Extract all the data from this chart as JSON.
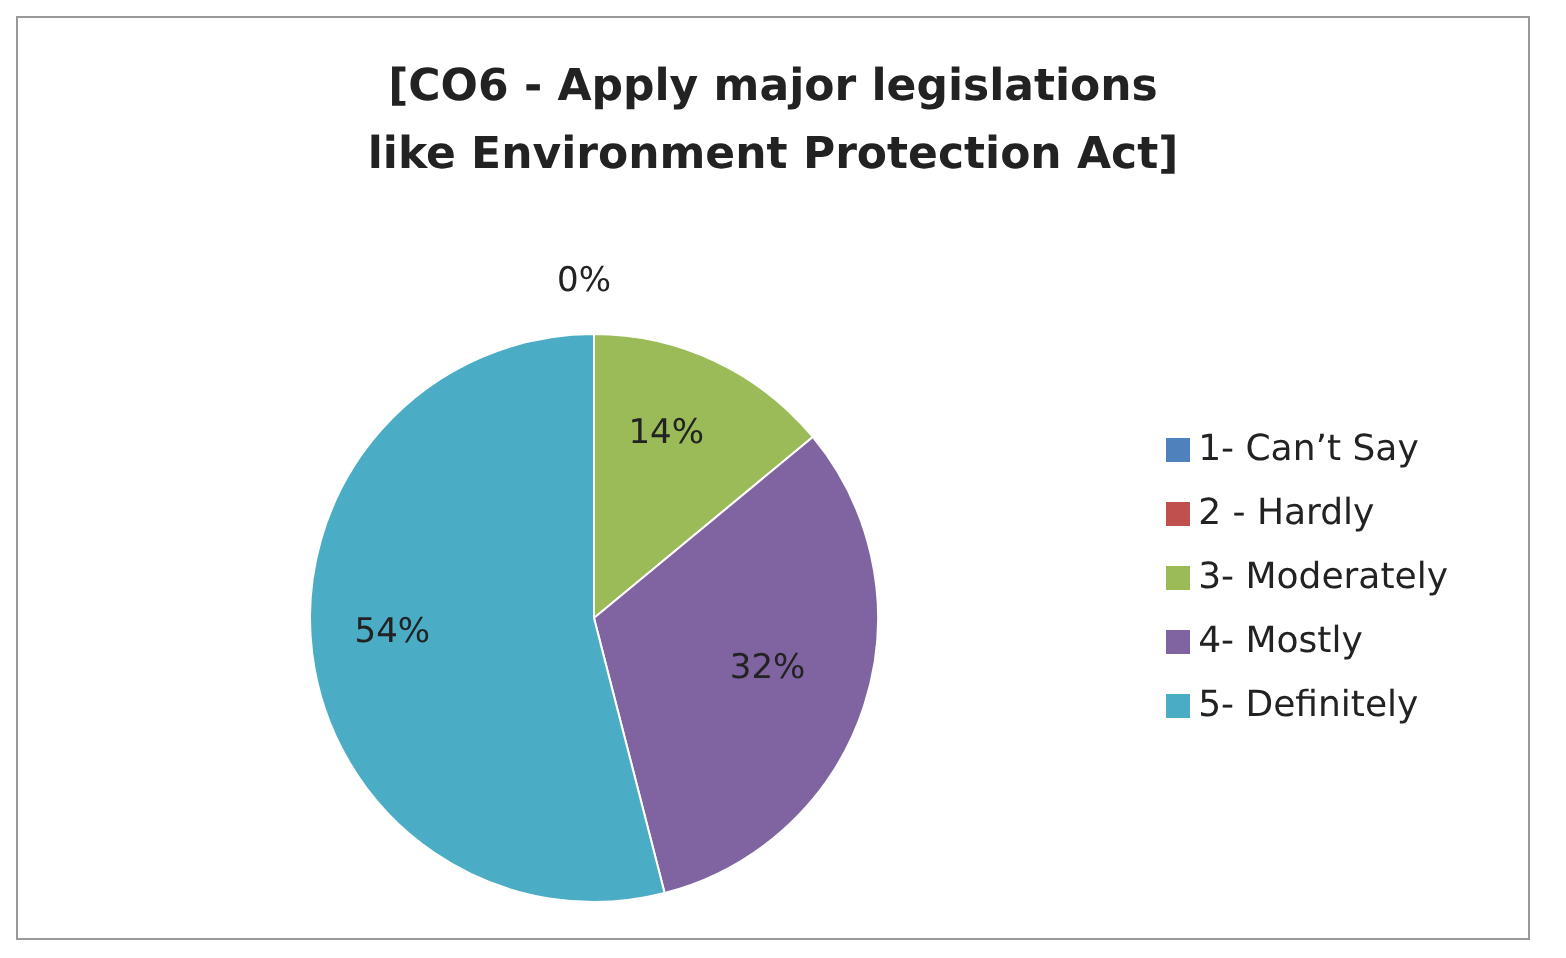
{
  "chart_data": {
    "type": "pie",
    "title": "[CO6 - Apply major legislations like Environment Protection Act]",
    "categories": [
      "1- Can’t Say",
      "2 - Hardly",
      "3- Moderately",
      "4- Mostly",
      "5- Definitely"
    ],
    "values": [
      0,
      0,
      14,
      32,
      54
    ],
    "colors": [
      "#4f81bd",
      "#c0504d",
      "#9bbb59",
      "#8064a2",
      "#4bacc6"
    ],
    "value_labels": [
      null,
      "0%",
      "14%",
      "32%",
      "54%"
    ],
    "legend": "right"
  }
}
